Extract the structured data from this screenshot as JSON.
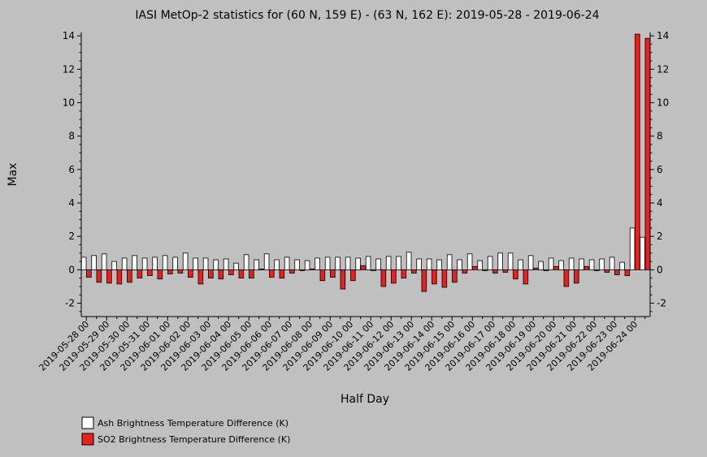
{
  "chart_data": {
    "type": "bar",
    "title": "IASI MetOp-2 statistics for (60 N, 159 E) - (63 N, 162 E): 2019-05-28 - 2019-06-24",
    "xlabel": "Half Day",
    "ylabel": "Max",
    "ylim": [
      -2.8,
      14.2
    ],
    "yticks": [
      -2,
      0,
      2,
      4,
      6,
      8,
      10,
      12,
      14
    ],
    "yticks_right": true,
    "grid": false,
    "legend_placement": "bottom-left",
    "colors": {
      "background": "#c0c0c0",
      "ash": "#ffffff",
      "so2": "#e82020",
      "axis": "#000000"
    },
    "date_labels": [
      "2019-05-28 00",
      "2019-05-29 00",
      "2019-05-30 00",
      "2019-05-31 00",
      "2019-06-01 00",
      "2019-06-02 00",
      "2019-06-03 00",
      "2019-06-04 00",
      "2019-06-05 00",
      "2019-06-06 00",
      "2019-06-07 00",
      "2019-06-08 00",
      "2019-06-09 00",
      "2019-06-10 00",
      "2019-06-11 00",
      "2019-06-12 00",
      "2019-06-13 00",
      "2019-06-14 00",
      "2019-06-15 00",
      "2019-06-16 00",
      "2019-06-17 00",
      "2019-06-18 00",
      "2019-06-19 00",
      "2019-06-20 00",
      "2019-06-21 00",
      "2019-06-22 00",
      "2019-06-23 00",
      "2019-06-24 00"
    ],
    "series": [
      {
        "name": "Ash Brightness Temperature Difference (K)",
        "values": [
          0.75,
          0.85,
          0.95,
          0.5,
          0.7,
          0.85,
          0.7,
          0.75,
          0.85,
          0.75,
          1.0,
          0.7,
          0.7,
          0.6,
          0.65,
          0.4,
          0.9,
          0.6,
          0.95,
          0.6,
          0.75,
          0.6,
          0.55,
          0.7,
          0.75,
          0.75,
          0.75,
          0.7,
          0.8,
          0.65,
          0.8,
          0.8,
          1.05,
          0.65,
          0.65,
          0.6,
          0.9,
          0.6,
          0.95,
          0.55,
          0.8,
          1.0,
          1.0,
          0.6,
          0.85,
          0.5,
          0.7,
          0.55,
          0.7,
          0.65,
          0.6,
          0.65,
          0.75,
          0.45,
          2.5,
          1.95
        ]
      },
      {
        "name": "SO2 Brightness Temperature Difference (K)",
        "values": [
          -0.45,
          -0.75,
          -0.8,
          -0.85,
          -0.75,
          -0.5,
          -0.35,
          -0.55,
          -0.25,
          -0.2,
          -0.45,
          -0.85,
          -0.5,
          -0.55,
          -0.3,
          -0.5,
          -0.5,
          0.05,
          -0.45,
          -0.5,
          -0.2,
          -0.05,
          0.05,
          -0.65,
          -0.45,
          -1.15,
          -0.65,
          0.25,
          -0.05,
          -1.0,
          -0.8,
          -0.5,
          -0.2,
          -1.3,
          -0.85,
          -1.05,
          -0.75,
          -0.2,
          0.2,
          -0.05,
          -0.2,
          -0.15,
          -0.55,
          -0.85,
          0.1,
          -0.05,
          0.2,
          -1.0,
          -0.8,
          0.2,
          -0.05,
          -0.15,
          -0.3,
          -0.35,
          14.1,
          13.85
        ]
      }
    ]
  }
}
